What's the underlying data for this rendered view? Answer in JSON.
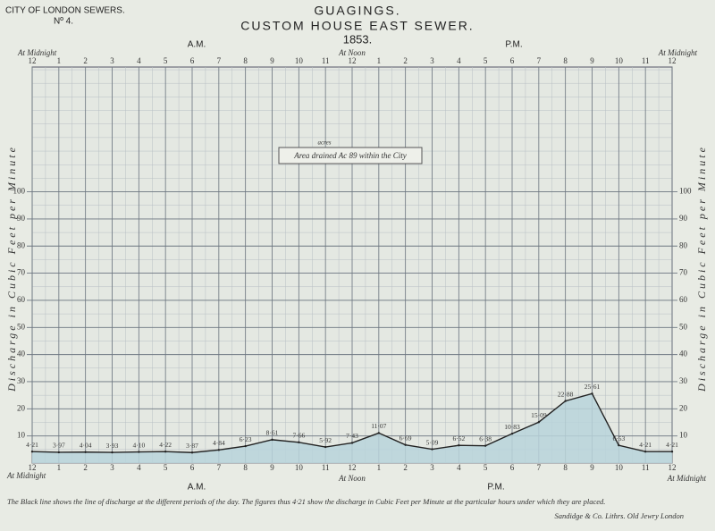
{
  "header": {
    "org": "CITY OF LONDON SEWERS.",
    "number": "Nº 4.",
    "title": "GUAGINGS.",
    "subtitle": "CUSTOM HOUSE EAST SEWER.",
    "year": "1853.",
    "am": "A.M.",
    "pm": "P.M.",
    "midnight": "At Midnight",
    "noon": "At Noon"
  },
  "area_note": {
    "unit": "acres",
    "text": "Area drained Ac 89 within the City"
  },
  "chart_data": {
    "type": "line",
    "y_label": "Discharge in Cubic Feet per Minute",
    "categories": [
      "12",
      "1",
      "2",
      "3",
      "4",
      "5",
      "6",
      "7",
      "8",
      "9",
      "10",
      "11",
      "12",
      "1",
      "2",
      "3",
      "4",
      "5",
      "6",
      "7",
      "8",
      "9",
      "10",
      "11",
      "12"
    ],
    "values": [
      4.21,
      3.97,
      4.04,
      3.93,
      4.1,
      4.22,
      3.87,
      4.84,
      6.23,
      8.61,
      7.66,
      5.92,
      7.43,
      11.07,
      6.69,
      5.09,
      6.52,
      6.38,
      10.83,
      15.09,
      22.88,
      25.61,
      6.53,
      4.21,
      4.21
    ],
    "value_labels": [
      "4·21",
      "3·97",
      "4·04",
      "3·93",
      "4·10",
      "4·22",
      "3·87",
      "4·84",
      "6·23",
      "8·61",
      "7·66",
      "5·92",
      "7·43",
      "11·07",
      "6·69",
      "5·09",
      "6·52",
      "6·38",
      "10·83",
      "15·09",
      "22·88",
      "25·61",
      "6·53",
      "4·21",
      "4·21"
    ],
    "color": "#222222",
    "fill": "#b9d4da",
    "ylim": [
      0,
      146
    ],
    "yticks": [
      10,
      20,
      30,
      40,
      50,
      60,
      70,
      80,
      90,
      100
    ],
    "grid": true
  },
  "footer": {
    "note": "The Black line shows the line of discharge at the different periods of the day. The figures thus 4·21 show the discharge in Cubic Feet per Minute at the particular hours under which they are placed.",
    "credit": "Sandidge & Co. Lithrs. Old Jewry London"
  }
}
